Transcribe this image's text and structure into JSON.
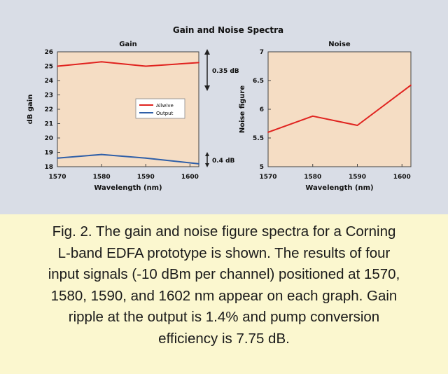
{
  "figure_title": "Gain and Noise Spectra",
  "chart_data": [
    {
      "type": "line",
      "title": "Gain",
      "xlabel": "Wavelength (nm)",
      "ylabel": "dB gain",
      "x_ticks": [
        "1570",
        "1580",
        "1590",
        "1600"
      ],
      "y_ticks": [
        "18",
        "19",
        "20",
        "21",
        "22",
        "23",
        "24",
        "25",
        "26"
      ],
      "xlim": [
        1570,
        1602
      ],
      "ylim": [
        18,
        26
      ],
      "grid": false,
      "legend_position": "center-right",
      "series": [
        {
          "name": "Allwive",
          "color": "#e0231f",
          "x": [
            1570,
            1580,
            1590,
            1602
          ],
          "y": [
            25.0,
            25.3,
            25.0,
            25.25
          ]
        },
        {
          "name": "Output",
          "color": "#2f5fa8",
          "x": [
            1570,
            1580,
            1590,
            1602
          ],
          "y": [
            18.6,
            18.85,
            18.6,
            18.2
          ]
        }
      ],
      "annotations": [
        "0.35 dB",
        "0.4 dB"
      ]
    },
    {
      "type": "line",
      "title": "Noise",
      "xlabel": "Wavelength (nm)",
      "ylabel": "Noise figure",
      "x_ticks": [
        "1570",
        "1580",
        "1590",
        "1600"
      ],
      "y_ticks": [
        "5",
        "5.5",
        "6",
        "6.5",
        "7"
      ],
      "xlim": [
        1570,
        1602
      ],
      "ylim": [
        5,
        7
      ],
      "grid": false,
      "series": [
        {
          "color": "#e0231f",
          "x": [
            1570,
            1580,
            1590,
            1602
          ],
          "y": [
            5.6,
            5.88,
            5.72,
            6.42
          ]
        }
      ]
    }
  ],
  "caption_lines": [
    "Fig. 2. The gain and noise figure spectra for a Corning",
    "L-band EDFA prototype is shown. The results of four",
    "input signals (-10 dBm per channel) positioned at 1570,",
    "1580, 1590, and 1602 nm appear on each graph. Gain",
    "ripple at the output is 1.4% and pump conversion",
    "efficiency is 7.75 dB."
  ]
}
